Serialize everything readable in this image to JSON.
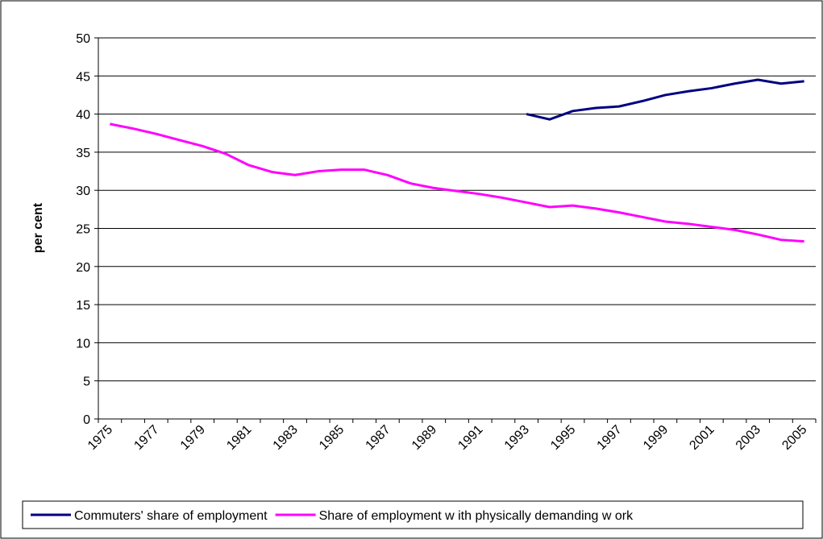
{
  "chart_data": {
    "type": "line",
    "ylabel": "per cent",
    "categories": [
      "1975",
      null,
      "1977",
      null,
      "1979",
      null,
      "1981",
      null,
      "1983",
      null,
      "1985",
      null,
      "1987",
      null,
      "1989",
      null,
      "1991",
      null,
      "1993",
      null,
      "1995",
      null,
      "1997",
      null,
      "1999",
      null,
      "2001",
      null,
      "2003",
      null,
      "2005"
    ],
    "series": [
      {
        "name": "Commuters' share of employment",
        "color": "#000080",
        "values": [
          null,
          null,
          null,
          null,
          null,
          null,
          null,
          null,
          null,
          null,
          null,
          null,
          null,
          null,
          null,
          null,
          null,
          null,
          40.0,
          39.3,
          40.4,
          40.8,
          41.0,
          41.7,
          42.5,
          43.0,
          43.4,
          44.0,
          44.5,
          44.0,
          44.3
        ]
      },
      {
        "name": "Share of employment w ith physically demanding w ork",
        "color": "#ff00ff",
        "values": [
          38.7,
          38.1,
          37.4,
          36.6,
          35.8,
          34.8,
          33.3,
          32.4,
          32.0,
          32.5,
          32.7,
          32.7,
          32.0,
          30.9,
          30.3,
          29.9,
          29.5,
          29.0,
          28.4,
          27.8,
          28.0,
          27.6,
          27.1,
          26.5,
          25.9,
          25.6,
          25.2,
          24.8,
          24.2,
          23.5,
          23.3
        ]
      }
    ],
    "ylim": [
      0,
      50
    ],
    "yticks": [
      0,
      5,
      10,
      15,
      20,
      25,
      30,
      35,
      40,
      45,
      50
    ],
    "grid": true,
    "legend": "bottom"
  }
}
